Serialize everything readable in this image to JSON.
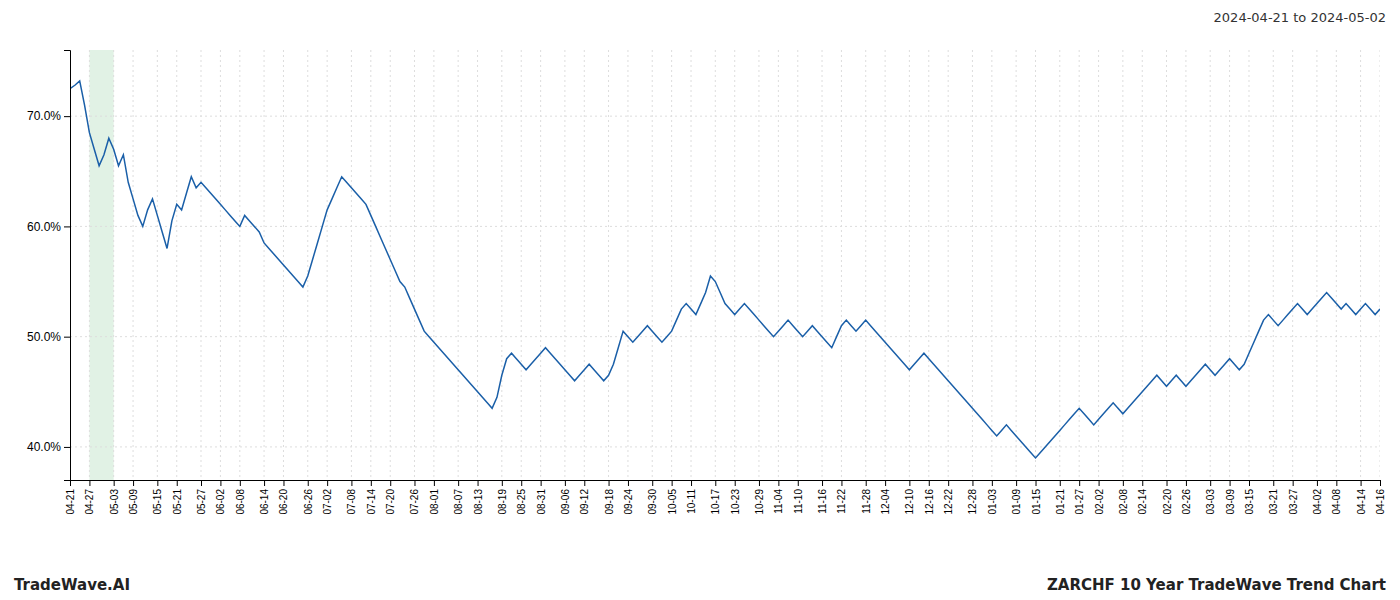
{
  "chart_data": {
    "type": "line",
    "title": "ZARCHF 10 Year TradeWave Trend Chart",
    "subtitle": "2024-04-21 to 2024-05-02",
    "annotations": [
      "TradeWave.AI"
    ],
    "color": "#1a5fa8",
    "grid": true,
    "ylim": [
      37,
      76
    ],
    "yticks": [
      {
        "value": 40,
        "label": "40.0%"
      },
      {
        "value": 50,
        "label": "50.0%"
      },
      {
        "value": 60,
        "label": "60.0%"
      },
      {
        "value": 70,
        "label": "70.0%"
      }
    ],
    "highlight": {
      "from": "04-27",
      "to": "05-03",
      "color": "#d4edda"
    },
    "categories": [
      "04-21",
      null,
      null,
      null,
      "04-27",
      null,
      null,
      null,
      null,
      "05-03",
      null,
      null,
      null,
      "05-09",
      null,
      null,
      null,
      null,
      "05-15",
      null,
      null,
      null,
      "05-21",
      null,
      null,
      null,
      null,
      "05-27",
      null,
      null,
      null,
      "06-02",
      null,
      null,
      null,
      "06-08",
      null,
      null,
      null,
      null,
      "06-14",
      null,
      null,
      null,
      "06-20",
      null,
      null,
      null,
      null,
      "06-26",
      null,
      null,
      null,
      "07-02",
      null,
      null,
      null,
      null,
      "07-08",
      null,
      null,
      null,
      "07-14",
      null,
      null,
      null,
      "07-20",
      null,
      null,
      null,
      null,
      "07-26",
      null,
      null,
      null,
      "08-01",
      null,
      null,
      null,
      null,
      "08-07",
      null,
      null,
      null,
      "08-13",
      null,
      null,
      null,
      null,
      "08-19",
      null,
      null,
      null,
      "08-25",
      null,
      null,
      null,
      "08-31",
      null,
      null,
      null,
      null,
      "09-06",
      null,
      null,
      null,
      "09-12",
      null,
      null,
      null,
      null,
      "09-18",
      null,
      null,
      null,
      "09-24",
      null,
      null,
      null,
      null,
      "09-30",
      null,
      null,
      null,
      "10-05",
      null,
      null,
      null,
      "10-11",
      null,
      null,
      null,
      null,
      "10-17",
      null,
      null,
      null,
      "10-23",
      null,
      null,
      null,
      null,
      "10-29",
      null,
      null,
      null,
      "11-04",
      null,
      null,
      null,
      "11-10",
      null,
      null,
      null,
      null,
      "11-16",
      null,
      null,
      null,
      "11-22",
      null,
      null,
      null,
      null,
      "11-28",
      null,
      null,
      null,
      "12-04",
      null,
      null,
      null,
      null,
      "12-10",
      null,
      null,
      null,
      "12-16",
      null,
      null,
      null,
      "12-22",
      null,
      null,
      null,
      null,
      "12-28",
      null,
      null,
      null,
      "01-03",
      null,
      null,
      null,
      null,
      "01-09",
      null,
      null,
      null,
      "01-15",
      null,
      null,
      null,
      null,
      "01-21",
      null,
      null,
      null,
      "01-27",
      null,
      null,
      null,
      "02-02",
      null,
      null,
      null,
      null,
      "02-08",
      null,
      null,
      null,
      "02-14",
      null,
      null,
      null,
      null,
      "02-20",
      null,
      null,
      null,
      "02-26",
      null,
      null,
      null,
      null,
      "03-03",
      null,
      null,
      null,
      "03-09",
      null,
      null,
      null,
      "03-15",
      null,
      null,
      null,
      null,
      "03-21",
      null,
      null,
      null,
      "03-27",
      null,
      null,
      null,
      null,
      "04-02",
      null,
      null,
      null,
      "04-08",
      null,
      null,
      null,
      null,
      "04-14",
      null,
      null,
      null,
      "04-16"
    ],
    "values": [
      72.5,
      72.8,
      73.2,
      71.0,
      68.5,
      67.0,
      65.5,
      66.5,
      68.0,
      67.0,
      65.5,
      66.5,
      64.0,
      62.5,
      61.0,
      60.0,
      61.5,
      62.5,
      61.0,
      59.5,
      58.0,
      60.5,
      62.0,
      61.5,
      63.0,
      64.5,
      63.5,
      64.0,
      63.5,
      63.0,
      62.5,
      62.0,
      61.5,
      61.0,
      60.5,
      60.0,
      61.0,
      60.5,
      60.0,
      59.5,
      58.5,
      58.0,
      57.5,
      57.0,
      56.5,
      56.0,
      55.5,
      55.0,
      54.5,
      55.5,
      57.0,
      58.5,
      60.0,
      61.5,
      62.5,
      63.5,
      64.5,
      64.0,
      63.5,
      63.0,
      62.5,
      62.0,
      61.0,
      60.0,
      59.0,
      58.0,
      57.0,
      56.0,
      55.0,
      54.5,
      53.5,
      52.5,
      51.5,
      50.5,
      50.0,
      49.5,
      49.0,
      48.5,
      48.0,
      47.5,
      47.0,
      46.5,
      46.0,
      45.5,
      45.0,
      44.5,
      44.0,
      43.5,
      44.5,
      46.5,
      48.0,
      48.5,
      48.0,
      47.5,
      47.0,
      47.5,
      48.0,
      48.5,
      49.0,
      48.5,
      48.0,
      47.5,
      47.0,
      46.5,
      46.0,
      46.5,
      47.0,
      47.5,
      47.0,
      46.5,
      46.0,
      46.5,
      47.5,
      49.0,
      50.5,
      50.0,
      49.5,
      50.0,
      50.5,
      51.0,
      50.5,
      50.0,
      49.5,
      50.0,
      50.5,
      51.5,
      52.5,
      53.0,
      52.5,
      52.0,
      53.0,
      54.0,
      55.5,
      55.0,
      54.0,
      53.0,
      52.5,
      52.0,
      52.5,
      53.0,
      52.5,
      52.0,
      51.5,
      51.0,
      50.5,
      50.0,
      50.5,
      51.0,
      51.5,
      51.0,
      50.5,
      50.0,
      50.5,
      51.0,
      50.5,
      50.0,
      49.5,
      49.0,
      50.0,
      51.0,
      51.5,
      51.0,
      50.5,
      51.0,
      51.5,
      51.0,
      50.5,
      50.0,
      49.5,
      49.0,
      48.5,
      48.0,
      47.5,
      47.0,
      47.5,
      48.0,
      48.5,
      48.0,
      47.5,
      47.0,
      46.5,
      46.0,
      45.5,
      45.0,
      44.5,
      44.0,
      43.5,
      43.0,
      42.5,
      42.0,
      41.5,
      41.0,
      41.5,
      42.0,
      41.5,
      41.0,
      40.5,
      40.0,
      39.5,
      39.0,
      39.5,
      40.0,
      40.5,
      41.0,
      41.5,
      42.0,
      42.5,
      43.0,
      43.5,
      43.0,
      42.5,
      42.0,
      42.5,
      43.0,
      43.5,
      44.0,
      43.5,
      43.0,
      43.5,
      44.0,
      44.5,
      45.0,
      45.5,
      46.0,
      46.5,
      46.0,
      45.5,
      46.0,
      46.5,
      46.0,
      45.5,
      46.0,
      46.5,
      47.0,
      47.5,
      47.0,
      46.5,
      47.0,
      47.5,
      48.0,
      47.5,
      47.0,
      47.5,
      48.5,
      49.5,
      50.5,
      51.5,
      52.0,
      51.5,
      51.0,
      51.5,
      52.0,
      52.5,
      53.0,
      52.5,
      52.0,
      52.5,
      53.0,
      53.5,
      54.0,
      53.5,
      53.0,
      52.5,
      53.0,
      52.5,
      52.0,
      52.5,
      53.0,
      52.5,
      52.0,
      52.5
    ]
  }
}
